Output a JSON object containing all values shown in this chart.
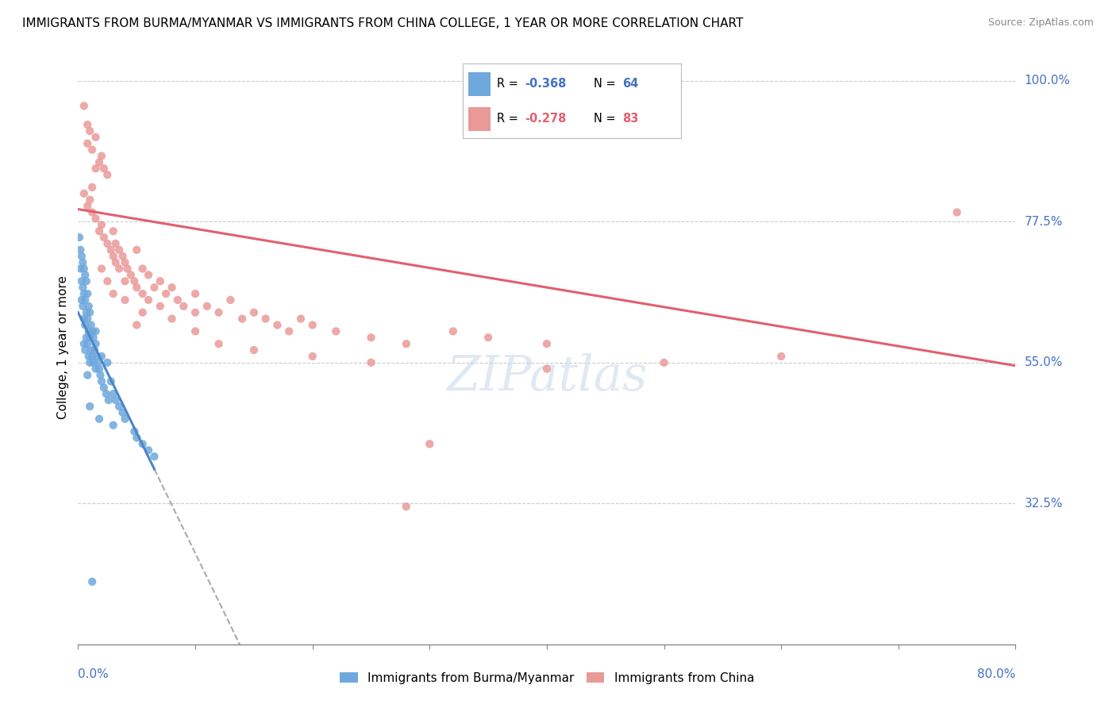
{
  "title": "IMMIGRANTS FROM BURMA/MYANMAR VS IMMIGRANTS FROM CHINA COLLEGE, 1 YEAR OR MORE CORRELATION CHART",
  "source": "Source: ZipAtlas.com",
  "ylabel": "College, 1 year or more",
  "ytick_labels": [
    "100.0%",
    "77.5%",
    "55.0%",
    "32.5%"
  ],
  "ytick_values": [
    1.0,
    0.775,
    0.55,
    0.325
  ],
  "xlim": [
    0.0,
    0.8
  ],
  "ylim": [
    0.1,
    1.05
  ],
  "color_burma": "#6fa8dc",
  "color_china": "#ea9999",
  "color_burma_line": "#4a86c8",
  "color_china_line": "#e06070",
  "watermark": "ZIPatlas",
  "burma_N": 64,
  "china_N": 83,
  "burma_R": "-0.368",
  "china_R": "-0.278",
  "china_line_y0": 0.795,
  "china_line_y1": 0.545,
  "burma_line_y0": 0.63,
  "burma_line_x1": 0.065,
  "burma_line_y1": 0.38
}
